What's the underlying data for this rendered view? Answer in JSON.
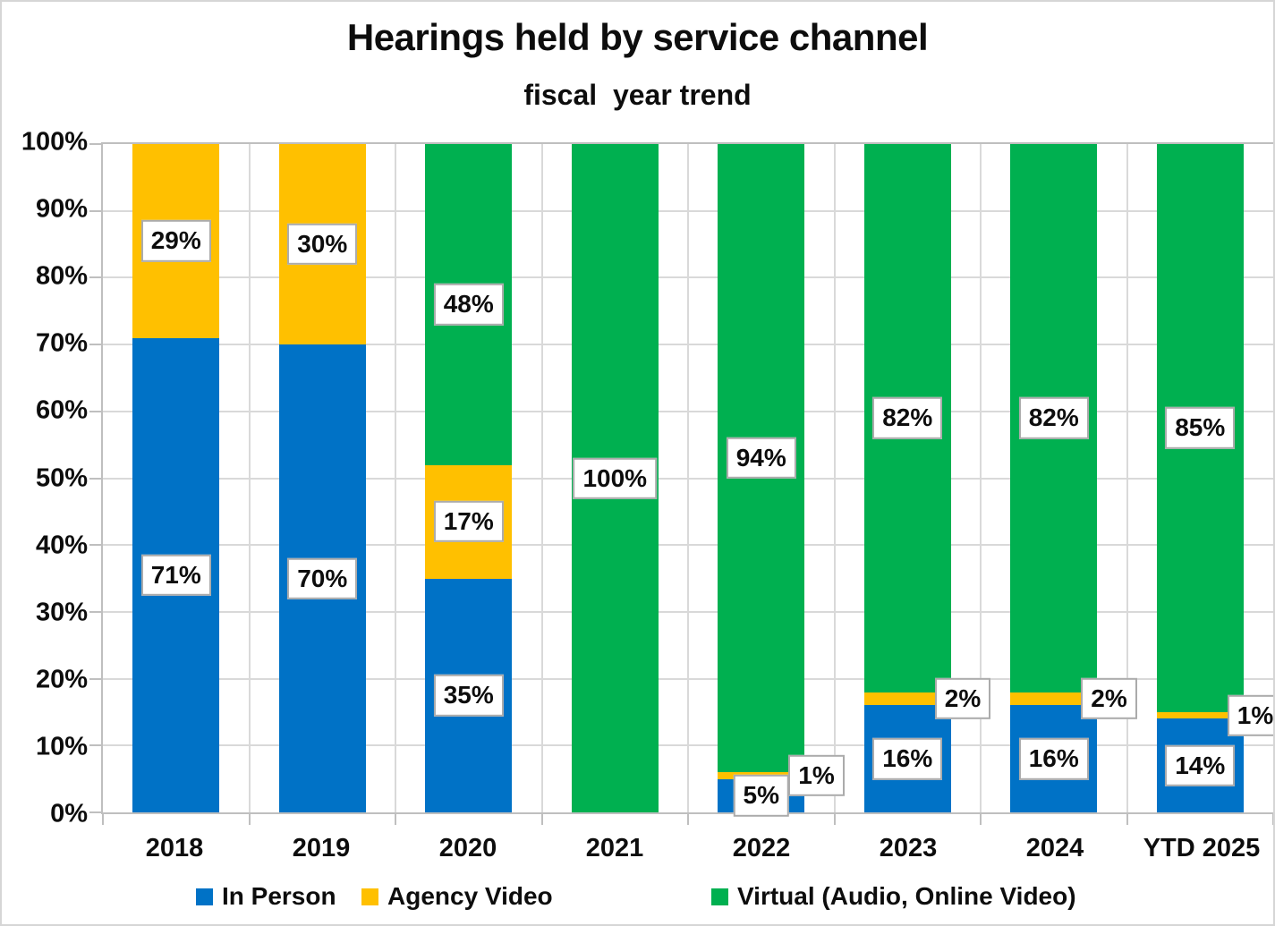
{
  "title": "Hearings held by service channel",
  "subtitle": "fiscal  year trend",
  "colors": {
    "in_person": "#0072C6",
    "agency_video": "#FFC000",
    "virtual": "#00B050",
    "gridline": "#D9D9D9",
    "axis_border": "#BFBFBF",
    "label_box_border": "#ABABAB"
  },
  "chart_data": {
    "type": "bar",
    "stacked": true,
    "unit": "percent",
    "title": "Hearings held by service channel",
    "subtitle": "fiscal  year trend",
    "categories": [
      "2018",
      "2019",
      "2020",
      "2021",
      "2022",
      "2023",
      "2024",
      "YTD 2025"
    ],
    "series": [
      {
        "name": "In Person",
        "color": "#0072C6",
        "values": [
          71,
          70,
          35,
          0,
          5,
          16,
          16,
          14
        ]
      },
      {
        "name": "Agency Video",
        "color": "#FFC000",
        "values": [
          29,
          30,
          17,
          0,
          1,
          2,
          2,
          1
        ]
      },
      {
        "name": "Virtual (Audio, Online Video)",
        "color": "#00B050",
        "values": [
          0,
          0,
          48,
          100,
          94,
          82,
          82,
          85
        ]
      }
    ],
    "data_label_format": "{value}%",
    "data_labels_shown": [
      [
        "71%",
        "29%"
      ],
      [
        "70%",
        "30%"
      ],
      [
        "35%",
        "17%",
        "48%"
      ],
      [
        "100%"
      ],
      [
        "5%",
        "1%",
        "94%"
      ],
      [
        "16%",
        "2%",
        "82%"
      ],
      [
        "16%",
        "2%",
        "82%"
      ],
      [
        "14%",
        "1%",
        "85%"
      ]
    ],
    "y_axis": {
      "min": 0,
      "max": 100,
      "step": 10,
      "tick_labels": [
        "100%",
        "90%",
        "80%",
        "70%",
        "60%",
        "50%",
        "40%",
        "30%",
        "20%",
        "10%",
        "0%"
      ]
    },
    "grid": true,
    "legend_position": "bottom"
  }
}
